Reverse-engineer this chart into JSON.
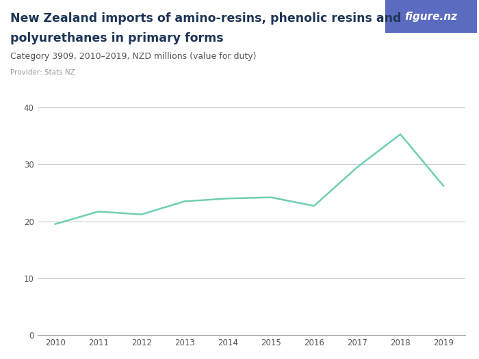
{
  "title_line1": "New Zealand imports of amino-resins, phenolic resins and",
  "title_line2": "polyurethanes in primary forms",
  "subtitle": "Category 3909, 2010–2019, NZD millions (value for duty)",
  "provider": "Provider: Stats NZ",
  "years": [
    2010,
    2011,
    2012,
    2013,
    2014,
    2015,
    2016,
    2017,
    2018,
    2019
  ],
  "values": [
    19.5,
    21.7,
    21.2,
    23.5,
    24.0,
    24.2,
    22.7,
    29.5,
    35.3,
    26.2
  ],
  "line_color": "#6ecfaf",
  "background_color": "#ffffff",
  "grid_color": "#cccccc",
  "title_color": "#1d3557",
  "subtitle_color": "#555555",
  "provider_color": "#999999",
  "tick_color": "#555555",
  "ylim": [
    0,
    43
  ],
  "yticks": [
    0,
    10,
    20,
    30,
    40
  ],
  "xlim": [
    2009.6,
    2019.5
  ],
  "figsize": [
    7.0,
    5.25
  ],
  "dpi": 100,
  "badge_color": "#5b6bbf",
  "badge_text": "figure.nz",
  "badge_text_color": "#ffffff",
  "line_width": 1.8,
  "title_fontsize": 12.5,
  "subtitle_fontsize": 9.0,
  "provider_fontsize": 7.5,
  "tick_fontsize": 8.5
}
